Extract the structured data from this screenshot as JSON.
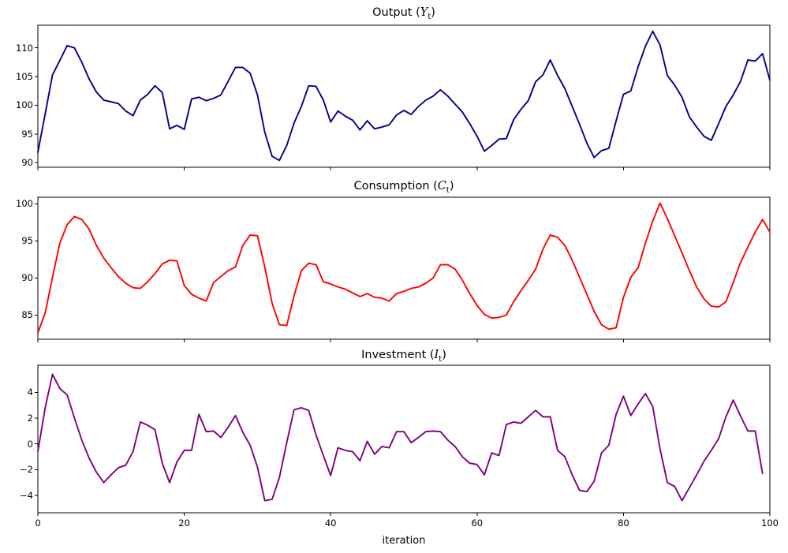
{
  "figure": {
    "background": "#ffffff",
    "spine_color": "#000000",
    "text_color": "#000000"
  },
  "xaxis": {
    "label": "iteration",
    "xlim": [
      0,
      100
    ],
    "tick_values": [
      0,
      20,
      40,
      60,
      80,
      100
    ],
    "tick_labels": [
      "0",
      "20",
      "40",
      "60",
      "80",
      "100"
    ]
  },
  "chart_data": [
    {
      "type": "line",
      "title_prefix": "Output (",
      "title_var": "Y",
      "title_sub": "t",
      "title_suffix": ")",
      "color": "#00008b",
      "ylim": [
        89.2,
        113.95
      ],
      "ytick_values": [
        90,
        95,
        100,
        105,
        110
      ],
      "ytick_labels": [
        "90",
        "95",
        "100",
        "105",
        "110"
      ],
      "x_start": 0,
      "x_step": 1,
      "values": [
        91.8,
        98.5,
        105.3,
        107.8,
        110.4,
        110.0,
        107.5,
        104.6,
        102.3,
        100.9,
        100.6,
        100.3,
        99.0,
        98.2,
        100.9,
        101.9,
        103.4,
        102.2,
        95.9,
        96.5,
        95.8,
        101.1,
        101.4,
        100.8,
        101.2,
        101.8,
        104.2,
        106.6,
        106.6,
        105.6,
        101.8,
        95.3,
        91.1,
        90.4,
        93.0,
        96.9,
        99.8,
        103.4,
        103.3,
        100.9,
        97.1,
        99.0,
        98.1,
        97.4,
        95.7,
        97.3,
        95.9,
        96.2,
        96.6,
        98.3,
        99.1,
        98.4,
        99.8,
        100.9,
        101.6,
        102.7,
        101.6,
        100.2,
        98.8,
        96.8,
        94.6,
        92.0,
        93.0,
        94.1,
        94.2,
        97.5,
        99.3,
        100.8,
        104.1,
        105.3,
        107.9,
        105.2,
        102.9,
        99.8,
        96.7,
        93.4,
        90.9,
        92.1,
        92.5,
        97.3,
        101.9,
        102.5,
        106.7,
        110.3,
        112.9,
        110.5,
        105.2,
        103.5,
        101.4,
        98.0,
        96.2,
        94.6,
        93.9,
        96.8,
        99.8,
        101.8,
        104.2,
        107.9,
        107.7,
        109.0,
        104.4
      ]
    },
    {
      "type": "line",
      "title_prefix": "Consumption (",
      "title_var": "C",
      "title_sub": "t",
      "title_suffix": ")",
      "color": "#ff0000",
      "ylim": [
        81.75,
        100.9
      ],
      "ytick_values": [
        85,
        90,
        95,
        100
      ],
      "ytick_labels": [
        "85",
        "90",
        "95",
        "100"
      ],
      "x_start": 0,
      "x_step": 1,
      "values": [
        82.6,
        85.3,
        90.1,
        94.7,
        97.2,
        98.3,
        97.9,
        96.6,
        94.4,
        92.7,
        91.4,
        90.2,
        89.3,
        88.7,
        88.6,
        89.5,
        90.6,
        91.9,
        92.4,
        92.3,
        89.0,
        87.8,
        87.3,
        86.9,
        89.4,
        90.2,
        91.0,
        91.5,
        94.4,
        95.8,
        95.7,
        91.5,
        86.6,
        83.7,
        83.6,
        87.6,
        91.0,
        92.0,
        91.8,
        89.5,
        89.2,
        88.8,
        88.5,
        88.0,
        87.5,
        87.9,
        87.4,
        87.3,
        86.9,
        87.9,
        88.2,
        88.6,
        88.8,
        89.3,
        90.0,
        91.8,
        91.8,
        91.2,
        89.7,
        87.9,
        86.3,
        85.1,
        84.6,
        84.7,
        85.0,
        86.8,
        88.3,
        89.7,
        91.2,
        93.9,
        95.8,
        95.5,
        94.4,
        92.4,
        90.1,
        87.8,
        85.5,
        83.7,
        83.1,
        83.3,
        87.4,
        90.1,
        91.4,
        94.7,
        97.7,
        100.1,
        98.0,
        95.7,
        93.4,
        91.0,
        88.8,
        87.2,
        86.2,
        86.1,
        86.8,
        89.4,
        92.1,
        94.2,
        96.2,
        97.9,
        96.2
      ]
    },
    {
      "type": "line",
      "title_prefix": "Investment (",
      "title_var": "I",
      "title_sub": "t",
      "title_suffix": ")",
      "color": "#800080",
      "ylim": [
        -5.34,
        6.1
      ],
      "ytick_values": [
        -4,
        -2,
        0,
        2,
        4
      ],
      "ytick_labels": [
        "−4",
        "−2",
        "0",
        "2",
        "4"
      ],
      "x_start": 0,
      "x_step": 1,
      "values": [
        -0.6,
        2.8,
        5.4,
        4.3,
        3.8,
        2.0,
        0.3,
        -1.1,
        -2.2,
        -3.0,
        -2.4,
        -1.85,
        -1.65,
        -0.6,
        1.7,
        1.45,
        1.1,
        -1.5,
        -3.0,
        -1.4,
        -0.5,
        -0.5,
        2.3,
        0.95,
        1.0,
        0.5,
        1.3,
        2.2,
        0.9,
        -0.1,
        -1.8,
        -4.4,
        -4.3,
        -2.6,
        0.1,
        2.65,
        2.8,
        2.6,
        0.7,
        -0.9,
        -2.45,
        -0.3,
        -0.5,
        -0.6,
        -1.3,
        0.2,
        -0.8,
        -0.2,
        -0.3,
        0.95,
        0.95,
        0.1,
        0.5,
        0.95,
        1.0,
        0.95,
        0.3,
        -0.2,
        -1.0,
        -1.5,
        -1.6,
        -2.4,
        -0.7,
        -0.9,
        1.5,
        1.7,
        1.6,
        2.1,
        2.6,
        2.1,
        2.1,
        -0.5,
        -1.0,
        -2.4,
        -3.6,
        -3.7,
        -2.9,
        -0.7,
        -0.1,
        2.3,
        3.7,
        2.2,
        3.1,
        3.9,
        2.9,
        -0.4,
        -3.0,
        -3.3,
        -4.4,
        -3.4,
        -2.4,
        -1.35,
        -0.5,
        0.4,
        2.1,
        3.4,
        2.15,
        1.0,
        1.0,
        -2.3
      ]
    }
  ]
}
